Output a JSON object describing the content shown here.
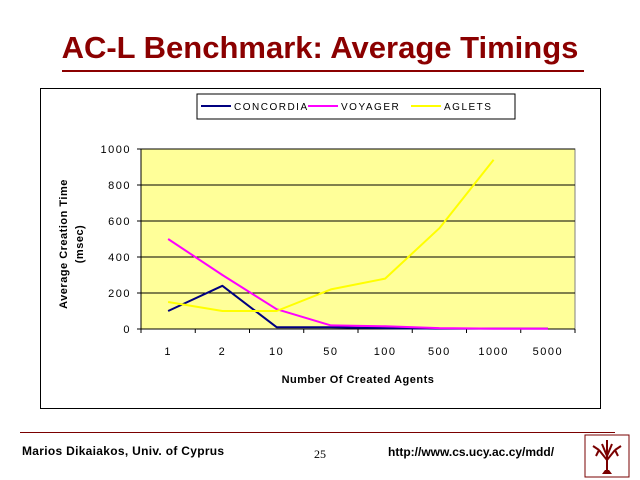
{
  "slide": {
    "title": "AC-L Benchmark: Average Timings",
    "footer_left": "Marios Dikaiakos, Univ. of Cyprus",
    "page_number": "25",
    "footer_url": "http://www.cs.ucy.ac.cy/mdd/"
  },
  "colors": {
    "title": "#8b0000",
    "plot_bg": "#ffff99",
    "concordia": "#000080",
    "voyager": "#ff00ff",
    "aglets": "#ffff00"
  },
  "chart_data": {
    "type": "line",
    "title": "",
    "xlabel": "Number Of Created Agents",
    "ylabel": "Average Creation Time (msec)",
    "ylabel_lines": [
      "Average Creation Time",
      "(msec)"
    ],
    "categories": [
      "1",
      "2",
      "10",
      "50",
      "100",
      "500",
      "1000",
      "5000"
    ],
    "ylim": [
      0,
      1000
    ],
    "yticks": [
      0,
      200,
      400,
      600,
      800,
      1000
    ],
    "ytick_labels": [
      "0",
      "200",
      "400",
      "600",
      "800",
      "1000"
    ],
    "grid": "horizontal",
    "legend_position": "top",
    "series": [
      {
        "name": "CONCORDIA",
        "color": "#000080",
        "values": [
          100,
          240,
          10,
          10,
          5,
          2,
          2,
          2
        ]
      },
      {
        "name": "VOYAGER",
        "color": "#ff00ff",
        "values": [
          500,
          300,
          110,
          20,
          15,
          5,
          2,
          2
        ]
      },
      {
        "name": "AGLETS",
        "color": "#ffff00",
        "values": [
          150,
          100,
          100,
          220,
          280,
          560,
          940,
          null
        ]
      }
    ]
  }
}
